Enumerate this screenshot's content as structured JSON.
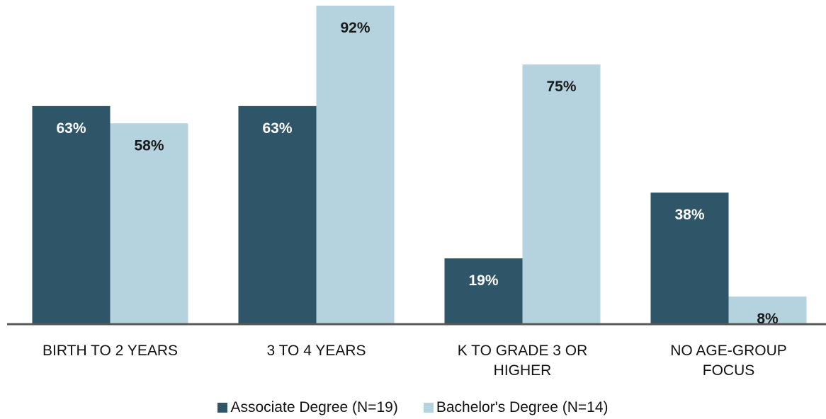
{
  "chart_data": {
    "type": "bar",
    "categories": [
      "BIRTH TO 2 YEARS",
      "3 TO 4 YEARS",
      "K TO GRADE 3 OR HIGHER",
      "NO AGE-GROUP FOCUS"
    ],
    "series": [
      {
        "name": "Associate Degree (N=19)",
        "color": "#2e5568",
        "label_color": "#ffffff",
        "values": [
          63,
          63,
          19,
          38
        ],
        "value_labels": [
          "63%",
          "63%",
          "19%",
          "38%"
        ]
      },
      {
        "name": "Bachelor's Degree (N=14)",
        "color": "#b4d3df",
        "label_color": "#1a1a1a",
        "values": [
          58,
          92,
          75,
          8
        ],
        "value_labels": [
          "58%",
          "92%",
          "75%",
          "8%"
        ]
      }
    ],
    "legend": "bottom"
  }
}
